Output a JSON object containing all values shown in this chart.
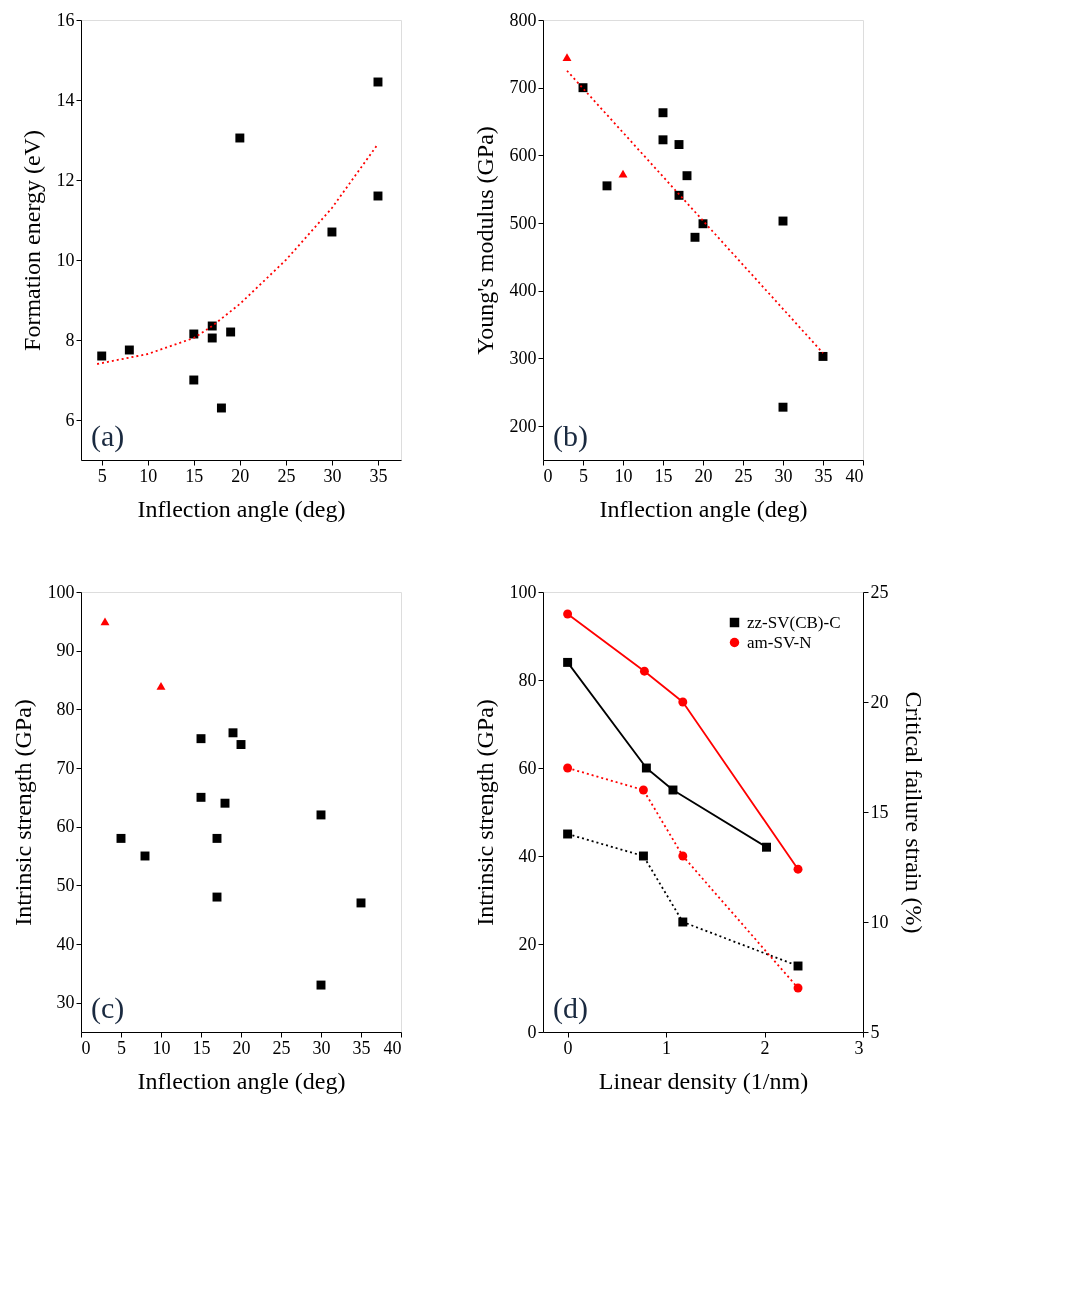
{
  "chart_data": [
    {
      "type": "scatter",
      "xlabel": "Inflection angle (deg)",
      "ylabel": "Formation energy (eV)",
      "xlim": [
        2.75,
        37.5
      ],
      "xticks": [
        5,
        10,
        15,
        20,
        25,
        30,
        35
      ],
      "ylim": [
        5,
        16
      ],
      "yticks": [
        6,
        8,
        10,
        12,
        14,
        16
      ],
      "grid": false,
      "annotations": [
        "(a)"
      ],
      "series": [
        {
          "color": "#000000",
          "marker": "square",
          "x": [
            5,
            8,
            15,
            15,
            17,
            17,
            18,
            19,
            20,
            30,
            35,
            35
          ],
          "values": [
            7.6,
            7.75,
            8.15,
            7.0,
            8.35,
            8.05,
            6.3,
            8.2,
            13.05,
            10.7,
            14.45,
            11.6
          ]
        },
        {
          "type": "line",
          "color": "#ff0000",
          "marker": "none",
          "line_style": "dotted",
          "x": [
            4.5,
            10,
            15,
            17,
            20,
            25,
            30,
            35
          ],
          "values": [
            7.4,
            7.65,
            8.05,
            8.35,
            8.9,
            10.0,
            11.3,
            12.9
          ]
        }
      ]
    },
    {
      "type": "scatter",
      "xlabel": "Inflection angle (deg)",
      "ylabel": "Young's modulus (GPa)",
      "xlim": [
        0,
        40
      ],
      "xticks": [
        0,
        5,
        10,
        15,
        20,
        25,
        30,
        35,
        40
      ],
      "ylim": [
        150,
        800
      ],
      "yticks": [
        200,
        300,
        400,
        500,
        600,
        700,
        800
      ],
      "grid": false,
      "annotations": [
        "(b)"
      ],
      "series": [
        {
          "color": "#000000",
          "marker": "square",
          "x": [
            5,
            8,
            15,
            15,
            17,
            17,
            18,
            19,
            20,
            30,
            30,
            35
          ],
          "values": [
            700,
            555,
            663,
            623,
            616,
            541,
            570,
            479,
            499,
            503,
            228,
            303
          ]
        },
        {
          "color": "#ff0000",
          "marker": "triangle",
          "x": [
            3,
            10
          ],
          "values": [
            745,
            573
          ]
        },
        {
          "type": "line",
          "color": "#ff0000",
          "marker": "none",
          "line_style": "dotted",
          "x": [
            3,
            35
          ],
          "values": [
            725,
            308
          ]
        }
      ]
    },
    {
      "type": "scatter",
      "xlabel": "Inflection angle (deg)",
      "ylabel": "Intrinsic strength (GPa)",
      "xlim": [
        0,
        40
      ],
      "xticks": [
        0,
        5,
        10,
        15,
        20,
        25,
        30,
        35,
        40
      ],
      "ylim": [
        25,
        100
      ],
      "yticks": [
        30,
        40,
        50,
        60,
        70,
        80,
        90,
        100
      ],
      "grid": false,
      "annotations": [
        "(c)"
      ],
      "series": [
        {
          "color": "#ff0000",
          "marker": "triangle",
          "x": [
            3,
            10
          ],
          "values": [
            95,
            84
          ]
        },
        {
          "color": "#000000",
          "marker": "square",
          "x": [
            5,
            8,
            15,
            15,
            17,
            17,
            18,
            19,
            20,
            30,
            30,
            35
          ],
          "values": [
            58,
            55,
            75,
            65,
            58,
            48,
            64,
            76,
            74,
            62,
            33,
            47
          ]
        }
      ]
    },
    {
      "type": "line",
      "xlabel": "Linear density (1/nm)",
      "ylabel": "Intrinsic strength (GPa)",
      "y2label": "Critical failure strain (%)",
      "xlim": [
        -0.25,
        3
      ],
      "xticks": [
        0,
        1,
        2,
        3
      ],
      "ylim": [
        0,
        100
      ],
      "yticks": [
        0,
        20,
        40,
        60,
        80,
        100
      ],
      "y2lim": [
        5,
        25
      ],
      "y2ticks": [
        5,
        10,
        15,
        20,
        25
      ],
      "grid": false,
      "legend": "top right",
      "annotations": [
        "(d)"
      ],
      "series": [
        {
          "name": "zz-SV(CB)-C",
          "color": "#000000",
          "marker": "square",
          "line_style": "solid",
          "x": [
            0,
            0.8,
            1.07,
            2.02
          ],
          "values": [
            84,
            60,
            55,
            42
          ]
        },
        {
          "name": "am-SV-N",
          "color": "#ff0000",
          "marker": "circle",
          "line_style": "solid",
          "x": [
            0,
            0.78,
            1.17,
            2.34
          ],
          "values": [
            95,
            82,
            75,
            37
          ]
        },
        {
          "color": "#000000",
          "marker": "square",
          "line_style": "dotted",
          "axis": "y2",
          "x": [
            0,
            0.77,
            1.17,
            2.34
          ],
          "values": [
            14,
            13,
            10,
            8
          ]
        },
        {
          "color": "#ff0000",
          "marker": "circle",
          "line_style": "dotted",
          "axis": "y2",
          "x": [
            0,
            0.77,
            1.17,
            2.34
          ],
          "values": [
            17,
            16,
            13,
            7
          ]
        }
      ]
    }
  ]
}
